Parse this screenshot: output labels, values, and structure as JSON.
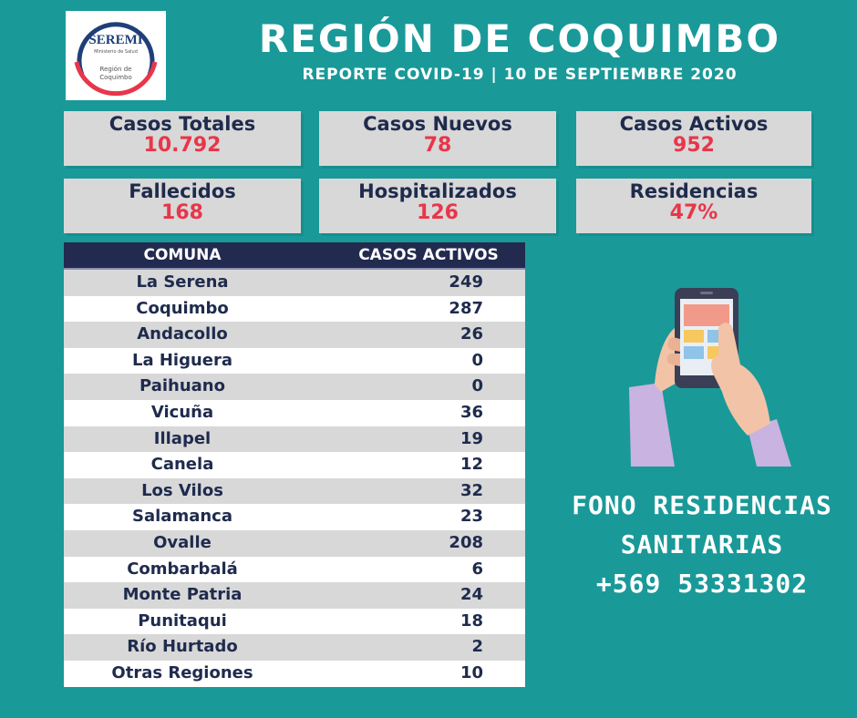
{
  "logo": {
    "name": "SEREMI",
    "ministry": "Ministerio de Salud",
    "region_line1": "Región de",
    "region_line2": "Coquimbo"
  },
  "header": {
    "title": "REGIÓN DE COQUIMBO",
    "subtitle": "REPORTE COVID-19 | 10 DE SEPTIEMBRE 2020"
  },
  "stats": [
    {
      "label": "Casos Totales",
      "value": "10.792"
    },
    {
      "label": "Casos Nuevos",
      "value": "78"
    },
    {
      "label": "Casos Activos",
      "value": "952"
    },
    {
      "label": "Fallecidos",
      "value": "168"
    },
    {
      "label": "Hospitalizados",
      "value": "126"
    },
    {
      "label": "Residencias",
      "value": "47%"
    }
  ],
  "table": {
    "headers": [
      "COMUNA",
      "CASOS ACTIVOS"
    ],
    "rows": [
      {
        "comuna": "La Serena",
        "casos": "249"
      },
      {
        "comuna": "Coquimbo",
        "casos": "287"
      },
      {
        "comuna": "Andacollo",
        "casos": "26"
      },
      {
        "comuna": "La Higuera",
        "casos": "0"
      },
      {
        "comuna": "Paihuano",
        "casos": "0"
      },
      {
        "comuna": "Vicuña",
        "casos": "36"
      },
      {
        "comuna": "Illapel",
        "casos": "19"
      },
      {
        "comuna": "Canela",
        "casos": "12"
      },
      {
        "comuna": "Los Vilos",
        "casos": "32"
      },
      {
        "comuna": "Salamanca",
        "casos": "23"
      },
      {
        "comuna": "Ovalle",
        "casos": "208"
      },
      {
        "comuna": "Combarbalá",
        "casos": "6"
      },
      {
        "comuna": "Monte Patria",
        "casos": "24"
      },
      {
        "comuna": "Punitaqui",
        "casos": "18"
      },
      {
        "comuna": "Río Hurtado",
        "casos": "2"
      },
      {
        "comuna": "Otras Regiones",
        "casos": "10"
      }
    ]
  },
  "fono": {
    "line1": "FONO RESIDENCIAS",
    "line2": "SANITARIAS",
    "phone": "+569 53331302"
  },
  "illustration": "hands-holding-phone-icon"
}
